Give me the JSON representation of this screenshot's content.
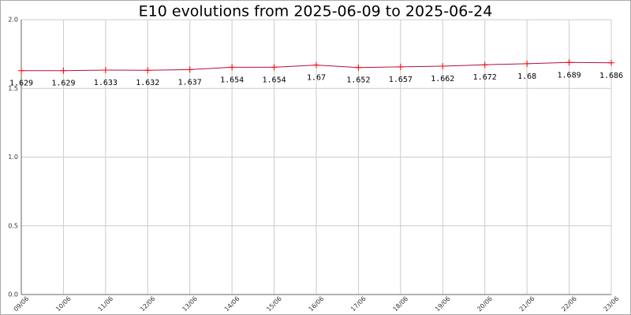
{
  "chart_data": {
    "type": "line",
    "title": "E10 evolutions from 2025-06-09 to 2025-06-24",
    "categories": [
      "09/06",
      "10/06",
      "11/06",
      "12/06",
      "13/06",
      "14/06",
      "15/06",
      "16/06",
      "17/06",
      "18/06",
      "19/06",
      "20/06",
      "21/06",
      "22/06",
      "23/06"
    ],
    "values": [
      1.629,
      1.629,
      1.633,
      1.632,
      1.637,
      1.654,
      1.654,
      1.67,
      1.652,
      1.657,
      1.662,
      1.672,
      1.68,
      1.689,
      1.686
    ],
    "color": "#b0103c",
    "marker_color": "#ff0000",
    "ylim": [
      0,
      2
    ],
    "yticks": [
      {
        "value": 0,
        "label": "0.0"
      },
      {
        "value": 0.5,
        "label": "0.5"
      },
      {
        "value": 1,
        "label": "1.0"
      },
      {
        "value": 1.5,
        "label": "1.5"
      },
      {
        "value": 2,
        "label": "2.0"
      }
    ],
    "grid": true
  }
}
